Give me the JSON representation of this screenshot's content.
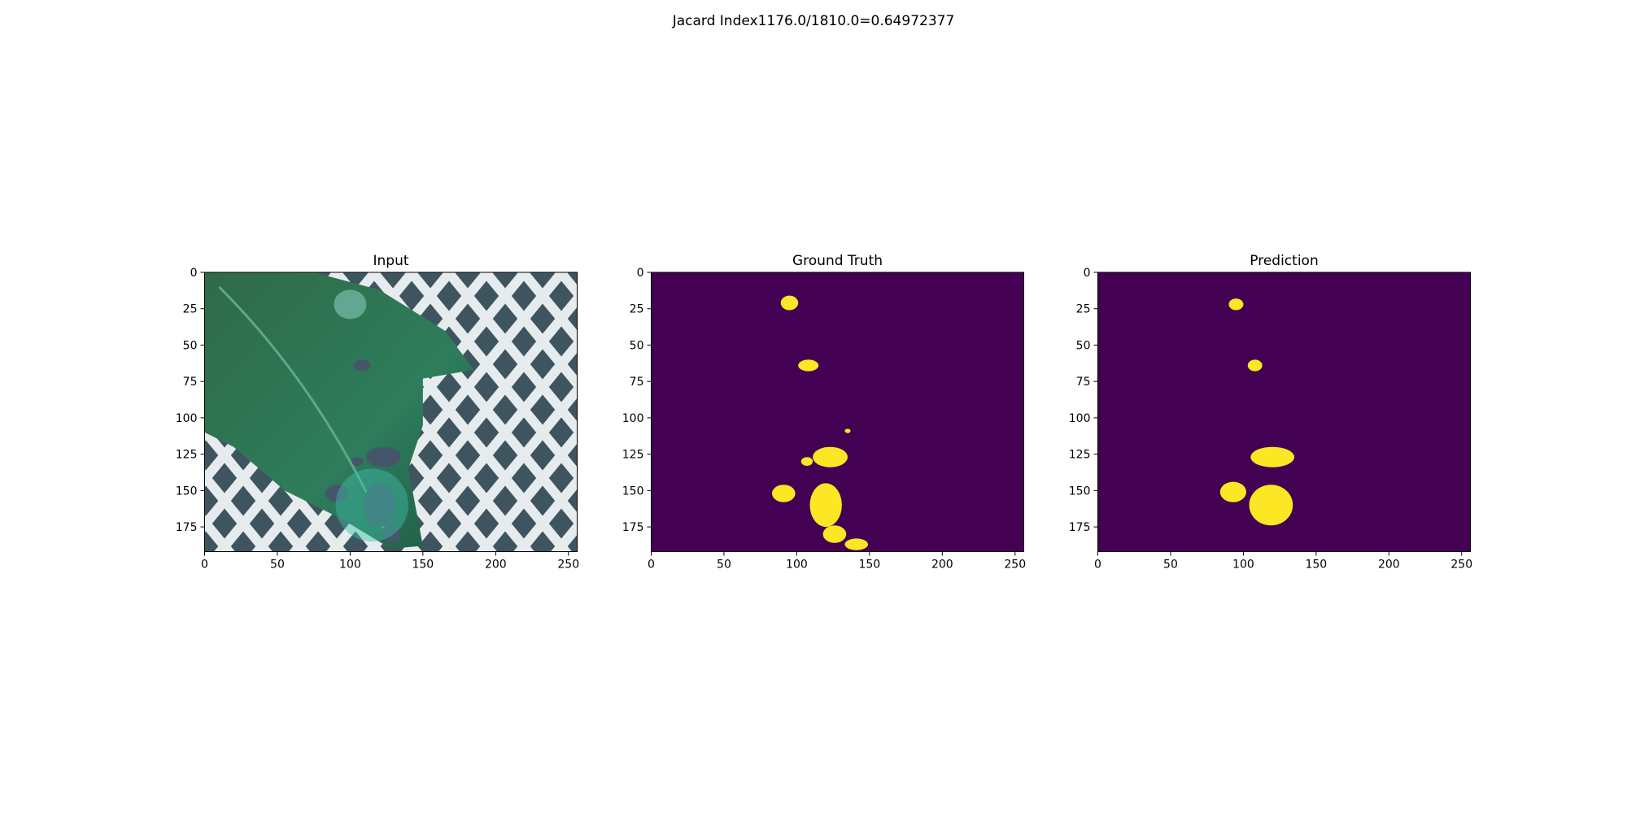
{
  "suptitle": "Jacard Index1176.0/1810.0=0.64972377",
  "chart_data": [
    {
      "type": "image",
      "title": "Input",
      "xlim": [
        0,
        256
      ],
      "ylim": [
        192,
        0
      ],
      "xticks": [
        0,
        50,
        100,
        150,
        200,
        250
      ],
      "yticks": [
        0,
        25,
        50,
        75,
        100,
        125,
        150,
        175
      ],
      "content": "photo of a green leaf with dark lesion spots in front of a white lattice fence"
    },
    {
      "type": "heatmap",
      "title": "Ground Truth",
      "xlim": [
        0,
        256
      ],
      "ylim": [
        192,
        0
      ],
      "xticks": [
        0,
        50,
        100,
        150,
        200,
        250
      ],
      "yticks": [
        0,
        25,
        50,
        75,
        100,
        125,
        150,
        175
      ],
      "colors": {
        "background": "#440154",
        "foreground": "#fde725"
      },
      "regions": [
        {
          "cx": 95,
          "cy": 21,
          "rx": 6,
          "ry": 5
        },
        {
          "cx": 108,
          "cy": 64,
          "rx": 7,
          "ry": 4
        },
        {
          "cx": 135,
          "cy": 109,
          "rx": 2,
          "ry": 1.5
        },
        {
          "cx": 123,
          "cy": 127,
          "rx": 12,
          "ry": 7
        },
        {
          "cx": 107,
          "cy": 130,
          "rx": 4,
          "ry": 3
        },
        {
          "cx": 91,
          "cy": 152,
          "rx": 8,
          "ry": 6
        },
        {
          "cx": 120,
          "cy": 160,
          "rx": 11,
          "ry": 15
        },
        {
          "cx": 126,
          "cy": 180,
          "rx": 8,
          "ry": 6
        },
        {
          "cx": 141,
          "cy": 187,
          "rx": 8,
          "ry": 4
        }
      ]
    },
    {
      "type": "heatmap",
      "title": "Prediction",
      "xlim": [
        0,
        256
      ],
      "ylim": [
        192,
        0
      ],
      "xticks": [
        0,
        50,
        100,
        150,
        200,
        250
      ],
      "yticks": [
        0,
        25,
        50,
        75,
        100,
        125,
        150,
        175
      ],
      "colors": {
        "background": "#440154",
        "foreground": "#fde725"
      },
      "regions": [
        {
          "cx": 95,
          "cy": 22,
          "rx": 5,
          "ry": 4
        },
        {
          "cx": 108,
          "cy": 64,
          "rx": 5,
          "ry": 4
        },
        {
          "cx": 120,
          "cy": 127,
          "rx": 15,
          "ry": 7
        },
        {
          "cx": 93,
          "cy": 151,
          "rx": 9,
          "ry": 7
        },
        {
          "cx": 119,
          "cy": 160,
          "rx": 15,
          "ry": 14
        }
      ]
    }
  ]
}
